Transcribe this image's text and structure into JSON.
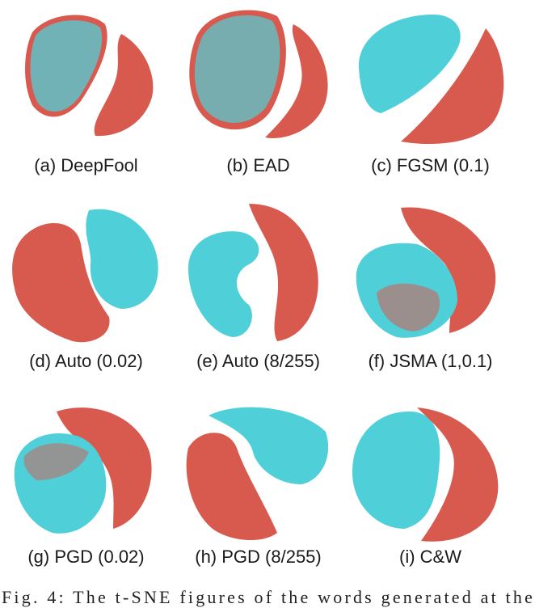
{
  "colors": {
    "adversarial": "#d85a4f",
    "clean": "#4fd0d8"
  },
  "panels": [
    {
      "id": "a",
      "caption": "(a) DeepFool"
    },
    {
      "id": "b",
      "caption": "(b) EAD"
    },
    {
      "id": "c",
      "caption": "(c) FGSM (0.1)"
    },
    {
      "id": "d",
      "caption": "(d) Auto (0.02)"
    },
    {
      "id": "e",
      "caption": "(e) Auto (8/255)"
    },
    {
      "id": "f",
      "caption": "(f) JSMA (1,0.1)"
    },
    {
      "id": "g",
      "caption": "(g) PGD (0.02)"
    },
    {
      "id": "h",
      "caption": "(h) PGD (8/255)"
    },
    {
      "id": "i",
      "caption": "(i) C&W"
    }
  ],
  "figure_caption": "Fig. 4: The t-SNE figures of the words generated at the"
}
